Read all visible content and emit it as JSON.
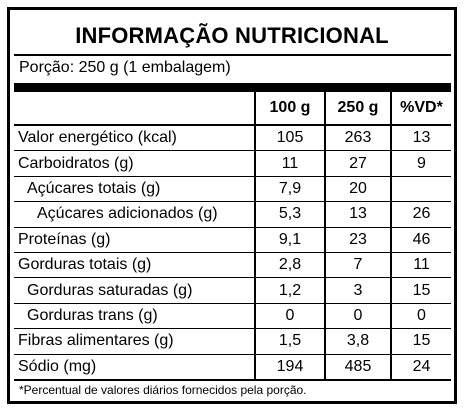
{
  "label": {
    "title": "INFORMAÇÃO NUTRICIONAL",
    "portion": "Porção: 250 g (1 embalagem)",
    "columns": [
      "",
      "100 g",
      "250 g",
      "%VD*"
    ],
    "rows": [
      {
        "name": "Valor energético (kcal)",
        "per100": "105",
        "per250": "263",
        "vd": "13",
        "indent": 0
      },
      {
        "name": "Carboidratos (g)",
        "per100": "11",
        "per250": "27",
        "vd": "9",
        "indent": 0
      },
      {
        "name": "Açúcares totais (g)",
        "per100": "7,9",
        "per250": "20",
        "vd": "",
        "indent": 1
      },
      {
        "name": "Açúcares adicionados (g)",
        "per100": "5,3",
        "per250": "13",
        "vd": "26",
        "indent": 2
      },
      {
        "name": "Proteínas (g)",
        "per100": "9,1",
        "per250": "23",
        "vd": "46",
        "indent": 0
      },
      {
        "name": "Gorduras totais (g)",
        "per100": "2,8",
        "per250": "7",
        "vd": "11",
        "indent": 0
      },
      {
        "name": "Gorduras saturadas (g)",
        "per100": "1,2",
        "per250": "3",
        "vd": "15",
        "indent": 1
      },
      {
        "name": "Gorduras trans (g)",
        "per100": "0",
        "per250": "0",
        "vd": "0",
        "indent": 1
      },
      {
        "name": "Fibras alimentares (g)",
        "per100": "1,5",
        "per250": "3,8",
        "vd": "15",
        "indent": 0
      },
      {
        "name": "Sódio (mg)",
        "per100": "194",
        "per250": "485",
        "vd": "24",
        "indent": 0
      }
    ],
    "footnote": "*Percentual de valores diários fornecidos pela porção."
  }
}
